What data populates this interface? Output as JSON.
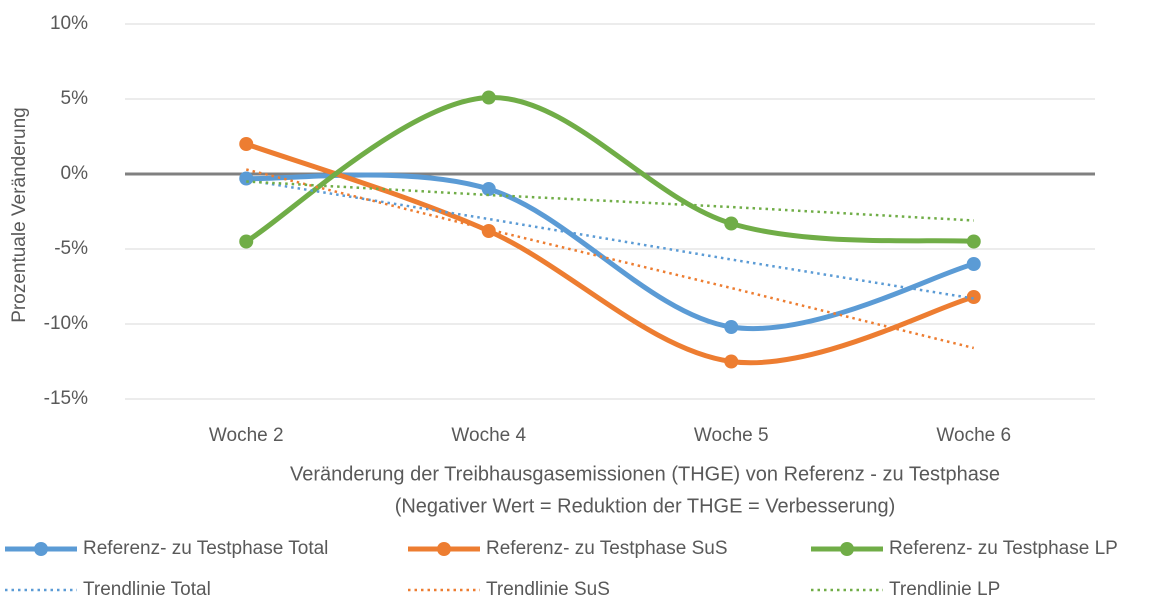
{
  "chart_data": {
    "type": "line",
    "y_axis_label": "Prozentuale Veränderung",
    "x_axis_label": [
      "Veränderung der Treibhausgasemissionen (THGE) von Referenz - zu Testphase",
      "(Negativer Wert = Reduktion der THGE = Verbesserung)"
    ],
    "categories": [
      "Woche 2",
      "Woche 4",
      "Woche 5",
      "Woche 6"
    ],
    "ylim": [
      -15,
      10
    ],
    "yticks": [
      {
        "value": -15,
        "label": "-15%"
      },
      {
        "value": -10,
        "label": "-10%"
      },
      {
        "value": -5,
        "label": "-5%"
      },
      {
        "value": 0,
        "label": "0%"
      },
      {
        "value": 5,
        "label": "5%"
      },
      {
        "value": 10,
        "label": "10%"
      }
    ],
    "grid": true,
    "legend": "bottom",
    "series": [
      {
        "name": "Referenz- zu Testphase Total",
        "color": "#5b9bd5",
        "style": "smooth",
        "values": [
          -0.3,
          -1.0,
          -10.2,
          -6.0
        ]
      },
      {
        "name": "Referenz- zu Testphase SuS",
        "color": "#ed7d31",
        "style": "smooth",
        "values": [
          2.0,
          -3.8,
          -12.5,
          -8.2
        ]
      },
      {
        "name": "Referenz- zu Testphase LP",
        "color": "#70ad47",
        "style": "smooth",
        "values": [
          -4.5,
          5.1,
          -3.3,
          -4.5
        ]
      },
      {
        "name": "Trendlinie Total",
        "color": "#5b9bd5",
        "style": "dotted",
        "values": [
          -0.4,
          -3.0,
          -5.7,
          -8.3
        ]
      },
      {
        "name": "Trendlinie SuS",
        "color": "#ed7d31",
        "style": "dotted",
        "values": [
          0.3,
          -3.7,
          -7.6,
          -11.6
        ]
      },
      {
        "name": "Trendlinie LP",
        "color": "#70ad47",
        "style": "dotted",
        "values": [
          -0.5,
          -1.4,
          -2.2,
          -3.1
        ]
      }
    ]
  }
}
